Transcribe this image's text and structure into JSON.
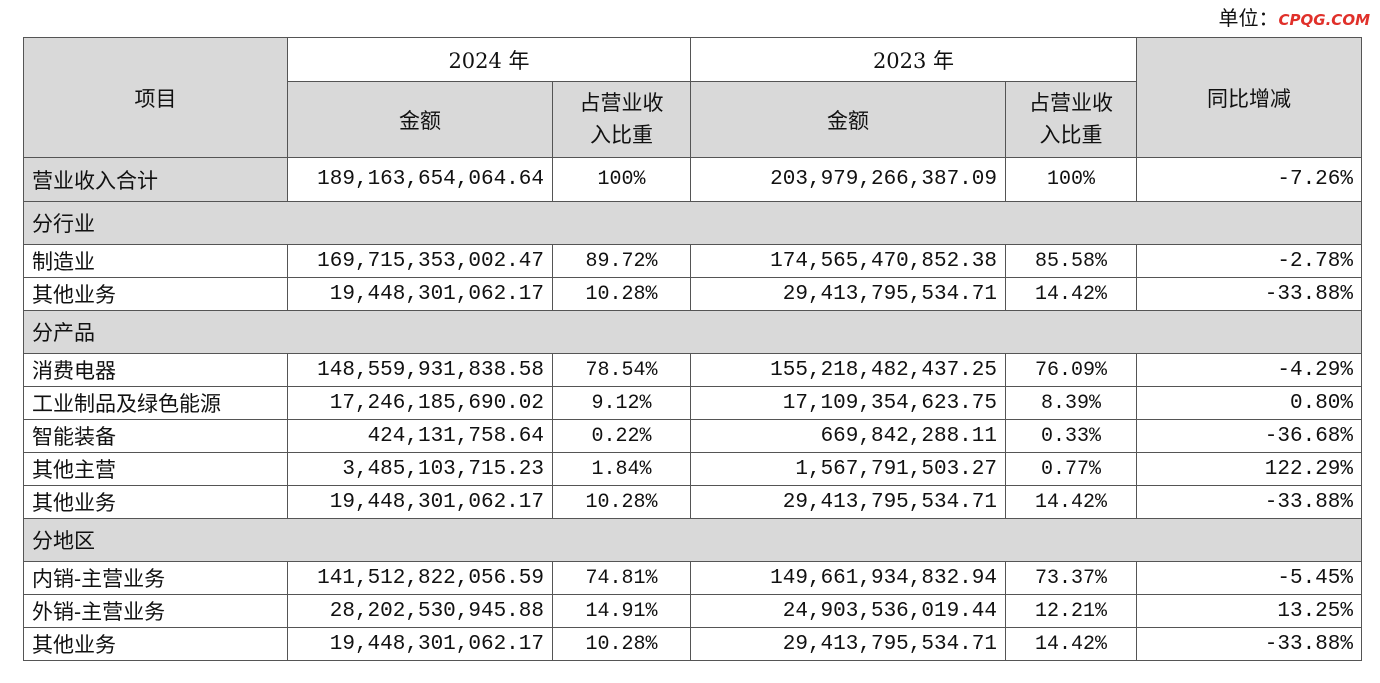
{
  "header": {
    "unit_label": "单位：",
    "watermark": "CPQG.COM"
  },
  "table": {
    "columns": {
      "item": "项目",
      "years": [
        "2024 年",
        "2023 年"
      ],
      "sub": [
        "金额",
        "占营业收入比重",
        "金额",
        "占营业收入比重"
      ],
      "change": "同比增减"
    },
    "rows": [
      [
        "营业收入合计",
        "189,163,654,064.64",
        "100%",
        "203,979,266,387.09",
        "100%",
        "-7.26%"
      ],
      [
        "分行业"
      ],
      [
        "制造业",
        "169,715,353,002.47",
        "89.72%",
        "174,565,470,852.38",
        "85.58%",
        "-2.78%"
      ],
      [
        "其他业务",
        "19,448,301,062.17",
        "10.28%",
        "29,413,795,534.71",
        "14.42%",
        "-33.88%"
      ],
      [
        "分产品"
      ],
      [
        "消费电器",
        "148,559,931,838.58",
        "78.54%",
        "155,218,482,437.25",
        "76.09%",
        "-4.29%"
      ],
      [
        "工业制品及绿色能源",
        "17,246,185,690.02",
        "9.12%",
        "17,109,354,623.75",
        "8.39%",
        "0.80%"
      ],
      [
        "智能装备",
        "424,131,758.64",
        "0.22%",
        "669,842,288.11",
        "0.33%",
        "-36.68%"
      ],
      [
        "其他主营",
        "3,485,103,715.23",
        "1.84%",
        "1,567,791,503.27",
        "0.77%",
        "122.29%"
      ],
      [
        "其他业务",
        "19,448,301,062.17",
        "10.28%",
        "29,413,795,534.71",
        "14.42%",
        "-33.88%"
      ],
      [
        "分地区"
      ],
      [
        "内销-主营业务",
        "141,512,822,056.59",
        "74.81%",
        "149,661,934,832.94",
        "73.37%",
        "-5.45%"
      ],
      [
        "外销-主营业务",
        "28,202,530,945.88",
        "14.91%",
        "24,903,536,019.44",
        "12.21%",
        "13.25%"
      ],
      [
        "其他业务",
        "19,448,301,062.17",
        "10.28%",
        "29,413,795,534.71",
        "14.42%",
        "-33.88%"
      ]
    ]
  }
}
